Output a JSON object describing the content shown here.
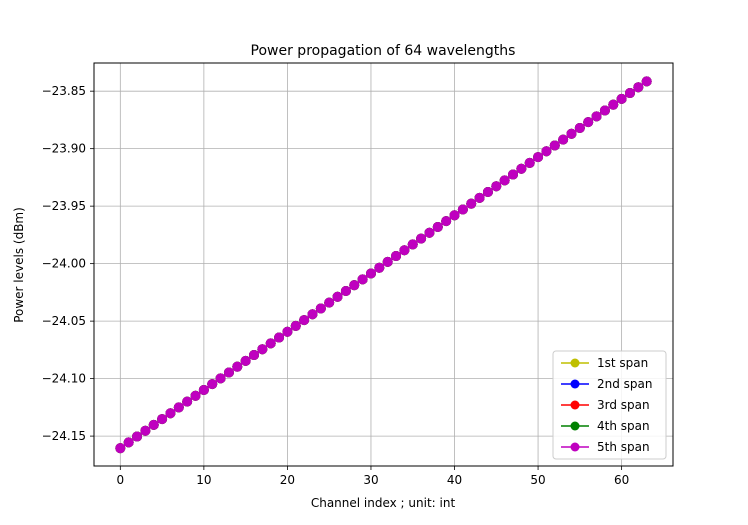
{
  "chart_data": {
    "type": "line",
    "title": "Power propagation of 64 wavelengths",
    "xlabel": "Channel index ; unit: int",
    "ylabel": "Power levels (dBm)",
    "xlim": [
      -3.15,
      66.15
    ],
    "ylim": [
      -24.176,
      -23.8255
    ],
    "xticks": [
      0,
      10,
      20,
      30,
      40,
      50,
      60
    ],
    "yticks": [
      -24.15,
      -24.1,
      -24.05,
      -24.0,
      -23.95,
      -23.9,
      -23.85
    ],
    "ytick_labels": [
      "−24.15",
      "−24.10",
      "−24.05",
      "−24.00",
      "−23.95",
      "−23.90",
      "−23.85"
    ],
    "grid": true,
    "legend_position": "lower-right",
    "x_start": 0,
    "x_end": 63,
    "y_start": -24.1605,
    "y_end": -23.8415,
    "series": [
      {
        "name": "1st span",
        "color": "#bfbf00",
        "marker": "circle"
      },
      {
        "name": "2nd span",
        "color": "#0000ff",
        "marker": "circle"
      },
      {
        "name": "3rd span",
        "color": "#ff0000",
        "marker": "circle"
      },
      {
        "name": "4th span",
        "color": "#008000",
        "marker": "circle"
      },
      {
        "name": "5th span",
        "color": "#bf00bf",
        "marker": "circle"
      }
    ]
  }
}
